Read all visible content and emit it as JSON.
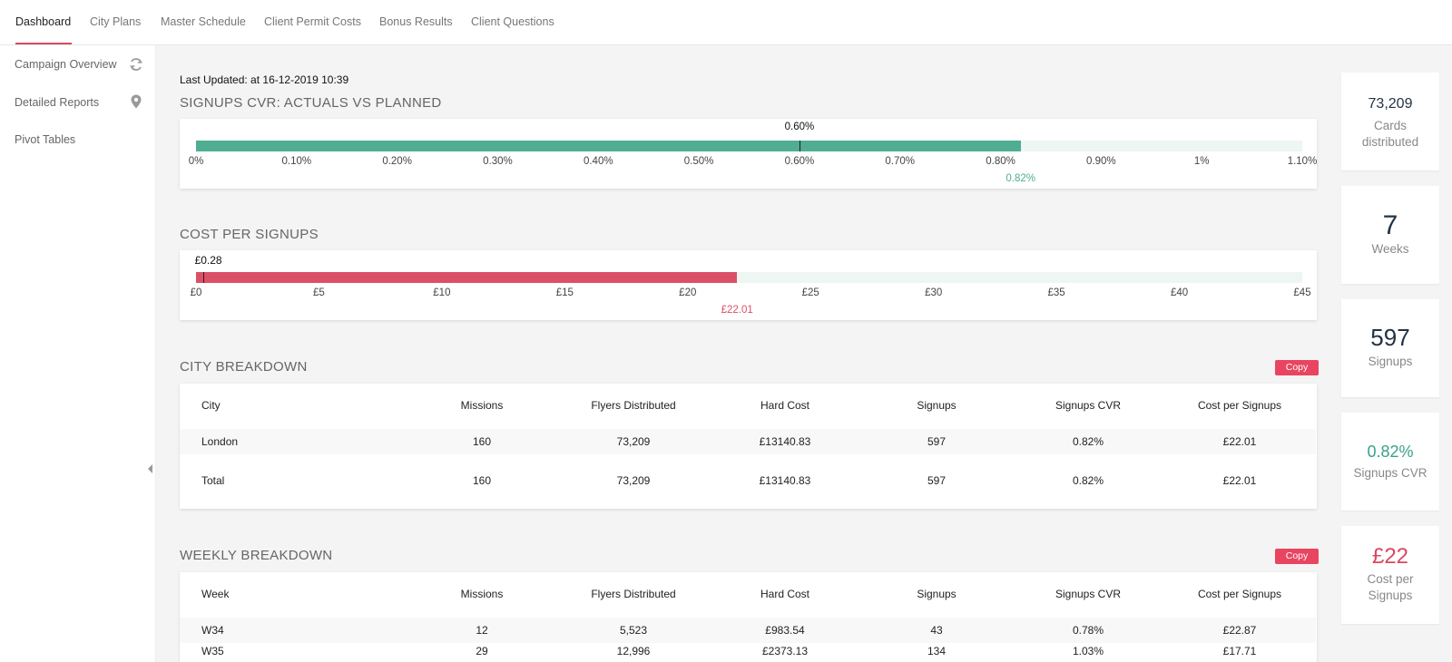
{
  "nav": {
    "tabs": [
      {
        "label": "Dashboard"
      },
      {
        "label": "City Plans"
      },
      {
        "label": "Master Schedule"
      },
      {
        "label": "Client Permit Costs"
      },
      {
        "label": "Bonus Results"
      },
      {
        "label": "Client Questions"
      }
    ],
    "active_tab": "Dashboard"
  },
  "sidebar": {
    "items": [
      {
        "label": "Campaign Overview",
        "icon": "refresh-icon"
      },
      {
        "label": "Detailed Reports",
        "icon": "map-pin-icon"
      },
      {
        "label": "Pivot Tables",
        "icon": ""
      }
    ]
  },
  "last_updated": "Last Updated: at 16-12-2019 10:39",
  "signups_cvr": {
    "title": "SIGNUPS CVR: ACTUALS VS PLANNED",
    "planned_label": "0.60%",
    "actual_label": "0.82%",
    "planned": 0.6,
    "actual": 0.82,
    "max": 1.1,
    "ticks": [
      "0%",
      "0.10%",
      "0.20%",
      "0.30%",
      "0.40%",
      "0.50%",
      "0.60%",
      "0.70%",
      "0.80%",
      "0.90%",
      "1%",
      "1.10%"
    ],
    "color": "#4fad92"
  },
  "cost_per_signups": {
    "title": "COST PER SIGNUPS",
    "planned_label": "£0.28",
    "actual_label": "£22.01",
    "planned": 0.28,
    "actual": 22.01,
    "max": 45,
    "ticks": [
      "£0",
      "£5",
      "£10",
      "£15",
      "£20",
      "£25",
      "£30",
      "£35",
      "£40",
      "£45"
    ],
    "color": "#dc5067"
  },
  "city_breakdown": {
    "title": "CITY BREAKDOWN",
    "copy_label": "Copy",
    "headers": [
      "City",
      "Missions",
      "Flyers Distributed",
      "Hard Cost",
      "Signups",
      "Signups CVR",
      "Cost per Signups"
    ],
    "rows": [
      [
        "London",
        "160",
        "73,209",
        "£13140.83",
        "597",
        "0.82%",
        "£22.01"
      ],
      [
        "Total",
        "160",
        "73,209",
        "£13140.83",
        "597",
        "0.82%",
        "£22.01"
      ]
    ]
  },
  "weekly_breakdown": {
    "title": "WEEKLY BREAKDOWN",
    "copy_label": "Copy",
    "headers": [
      "Week",
      "Missions",
      "Flyers Distributed",
      "Hard Cost",
      "Signups",
      "Signups CVR",
      "Cost per Signups"
    ],
    "rows": [
      [
        "W34",
        "12",
        "5,523",
        "£983.54",
        "43",
        "0.78%",
        "£22.87"
      ],
      [
        "W35",
        "29",
        "12,996",
        "£2373.13",
        "134",
        "1.03%",
        "£17.71"
      ]
    ]
  },
  "stats": [
    {
      "value": "73,209",
      "label": "Cards distributed",
      "color": "#223344"
    },
    {
      "value": "7",
      "label": "Weeks",
      "color": "#223344"
    },
    {
      "value": "597",
      "label": "Signups",
      "color": "#223344"
    },
    {
      "value": "0.82%",
      "label": "Signups CVR",
      "color": "#3aa08a"
    },
    {
      "value": "£22",
      "label": "Cost per Signups",
      "color": "#dc4660"
    }
  ]
}
